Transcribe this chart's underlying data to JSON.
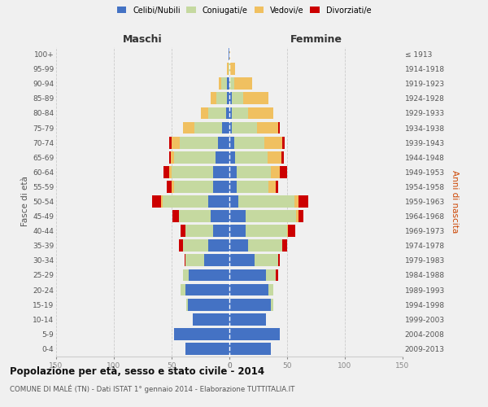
{
  "age_groups": [
    "100+",
    "95-99",
    "90-94",
    "85-89",
    "80-84",
    "75-79",
    "70-74",
    "65-69",
    "60-64",
    "55-59",
    "50-54",
    "45-49",
    "40-44",
    "35-39",
    "30-34",
    "25-29",
    "20-24",
    "15-19",
    "10-14",
    "5-9",
    "0-4"
  ],
  "years_labels": [
    "≤ 1913",
    "1914-1918",
    "1919-1923",
    "1924-1928",
    "1929-1933",
    "1934-1938",
    "1939-1943",
    "1944-1948",
    "1949-1953",
    "1954-1958",
    "1959-1963",
    "1964-1968",
    "1969-1973",
    "1974-1978",
    "1979-1983",
    "1984-1988",
    "1989-1993",
    "1994-1998",
    "1999-2003",
    "2004-2008",
    "2009-2013"
  ],
  "colors": {
    "celibi": "#4472C4",
    "coniugati": "#c5d9a0",
    "vedovi": "#f0c060",
    "divorziati": "#cc0000"
  },
  "male": {
    "celibi": [
      1,
      0,
      2,
      2,
      3,
      6,
      10,
      12,
      14,
      14,
      18,
      16,
      14,
      18,
      22,
      35,
      38,
      36,
      32,
      48,
      38
    ],
    "coniugati": [
      0,
      1,
      5,
      9,
      15,
      24,
      33,
      36,
      36,
      34,
      40,
      28,
      24,
      22,
      16,
      5,
      4,
      1,
      0,
      0,
      0
    ],
    "vedovi": [
      0,
      1,
      2,
      5,
      7,
      10,
      7,
      3,
      2,
      2,
      1,
      0,
      0,
      0,
      0,
      0,
      0,
      0,
      0,
      0,
      0
    ],
    "divorziati": [
      0,
      0,
      0,
      0,
      0,
      0,
      2,
      1,
      5,
      4,
      8,
      5,
      4,
      4,
      1,
      0,
      0,
      0,
      0,
      0,
      0
    ]
  },
  "female": {
    "nubili": [
      0,
      0,
      0,
      2,
      2,
      2,
      4,
      5,
      6,
      6,
      8,
      14,
      14,
      16,
      22,
      32,
      34,
      36,
      32,
      44,
      36
    ],
    "coniugate": [
      0,
      1,
      4,
      10,
      14,
      22,
      26,
      28,
      30,
      28,
      48,
      44,
      36,
      30,
      20,
      8,
      4,
      2,
      0,
      0,
      0
    ],
    "vedove": [
      1,
      4,
      16,
      22,
      22,
      18,
      16,
      12,
      8,
      6,
      4,
      2,
      1,
      0,
      0,
      0,
      0,
      0,
      0,
      0,
      0
    ],
    "divorziate": [
      0,
      0,
      0,
      0,
      0,
      2,
      2,
      2,
      6,
      2,
      8,
      4,
      6,
      4,
      2,
      2,
      0,
      0,
      0,
      0,
      0
    ]
  },
  "xlim": 150,
  "title": "Popolazione per età, sesso e stato civile - 2014",
  "subtitle": "COMUNE DI MALÉ (TN) - Dati ISTAT 1° gennaio 2014 - Elaborazione TUTTITALIA.IT",
  "xlabel_left": "Maschi",
  "xlabel_right": "Femmine",
  "ylabel_left": "Fasce di età",
  "ylabel_right": "Anni di nascita",
  "legend_labels": [
    "Celibi/Nubili",
    "Coniugati/e",
    "Vedovi/e",
    "Divorziati/e"
  ],
  "bg_color": "#f0f0f0",
  "bar_height": 0.82,
  "grid_color": "#cccccc",
  "tick_color": "#888888",
  "label_color": "#555555"
}
